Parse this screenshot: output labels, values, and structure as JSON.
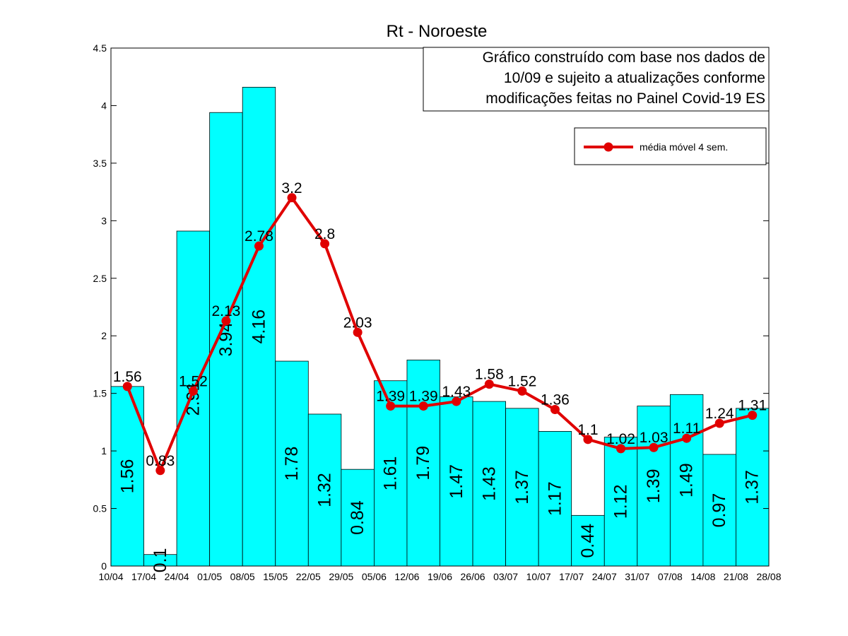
{
  "chart_data": {
    "type": "bar",
    "title": "Rt - Noroeste",
    "xlabel": "",
    "ylabel": "",
    "ylim": [
      0,
      4.5
    ],
    "yticks": [
      "0",
      "0.5",
      "1",
      "1.5",
      "2",
      "2.5",
      "3",
      "3.5",
      "4",
      "4.5"
    ],
    "categories": [
      "10/04",
      "17/04",
      "24/04",
      "01/05",
      "08/05",
      "15/05",
      "22/05",
      "29/05",
      "05/06",
      "12/06",
      "19/06",
      "26/06",
      "03/07",
      "10/07",
      "17/07",
      "24/07",
      "31/07",
      "07/08",
      "14/08",
      "21/08",
      "28/08"
    ],
    "bars": {
      "values": [
        1.56,
        0.1,
        2.91,
        3.94,
        4.16,
        1.78,
        1.32,
        0.84,
        1.61,
        1.79,
        1.47,
        1.43,
        1.37,
        1.17,
        0.44,
        1.12,
        1.39,
        1.49,
        0.97,
        1.37
      ],
      "labels": [
        "1.56",
        "0.1",
        "2.91",
        "3.94",
        "4.16",
        "1.78",
        "1.32",
        "0.84",
        "1.61",
        "1.79",
        "1.47",
        "1.43",
        "1.37",
        "1.17",
        "0.44",
        "1.12",
        "1.39",
        "1.49",
        "0.97",
        "1.37"
      ],
      "color": "#00ffff"
    },
    "line": {
      "name": "média móvel 4 sem.",
      "values": [
        1.56,
        0.83,
        1.52,
        2.13,
        2.78,
        3.2,
        2.8,
        2.03,
        1.39,
        1.39,
        1.43,
        1.58,
        1.52,
        1.36,
        1.1,
        1.02,
        1.03,
        1.11,
        1.24,
        1.31
      ],
      "labels": [
        "1.56",
        "0.83",
        "1.52",
        "2.13",
        "2.78",
        "3.2",
        "2.8",
        "2.03",
        "1.39",
        "1.39",
        "1.43",
        "1.58",
        "1.52",
        "1.36",
        "1.1",
        "1.02",
        "1.03",
        "1.11",
        "1.24",
        "1.31"
      ],
      "color": "#e00000"
    },
    "annotation": [
      "Gráfico construído com base nos dados de",
      "10/09 e sujeito a atualizações conforme",
      "modificações feitas no Painel Covid-19 ES"
    ],
    "legend_position": "top-right",
    "grid": false
  }
}
